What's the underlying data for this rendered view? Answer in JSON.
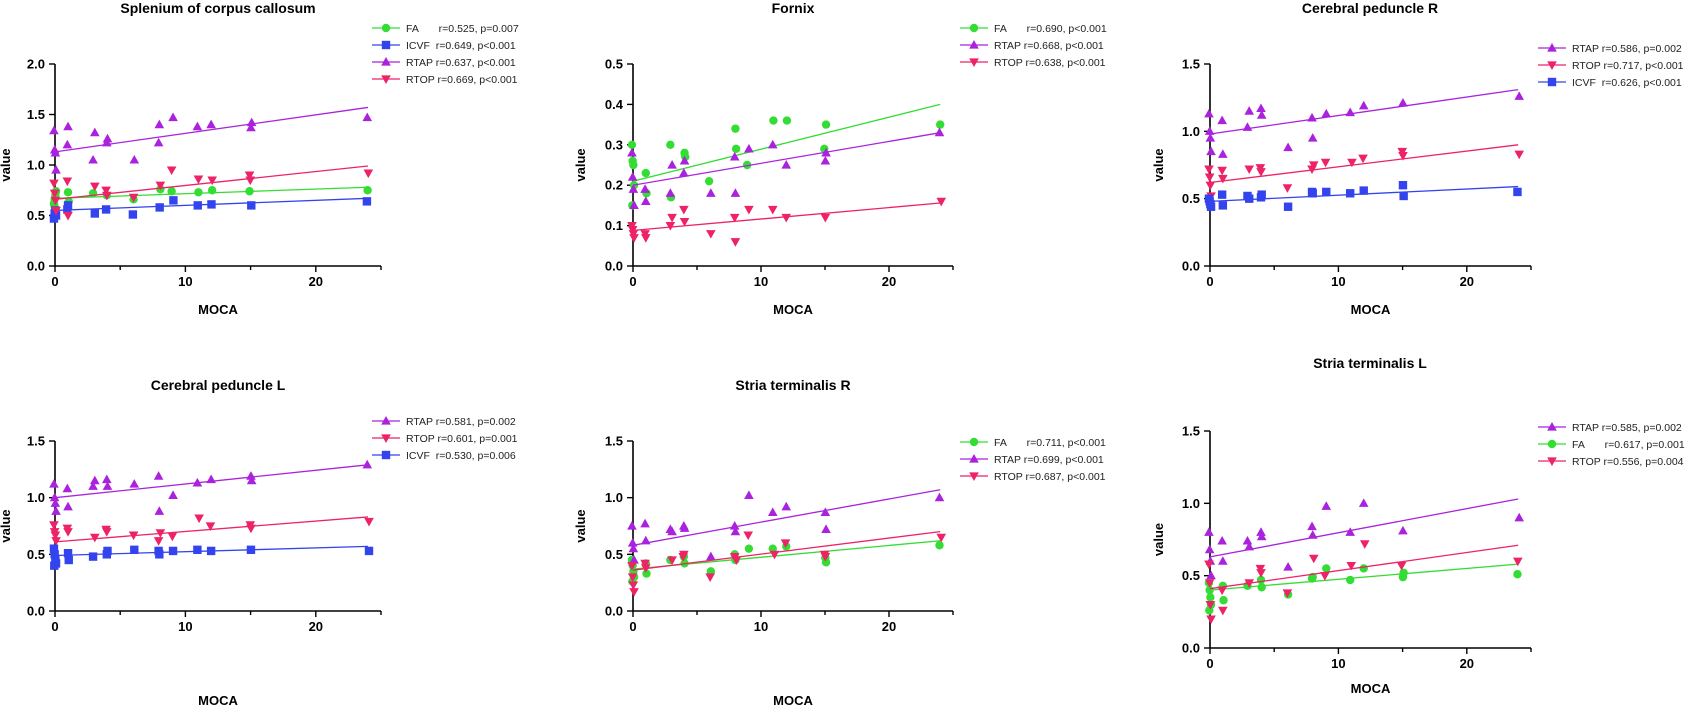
{
  "chart_data": [
    {
      "type": "scatter",
      "title": "Splenium of corpus callosum",
      "xlabel": "MOCA",
      "ylabel": "value",
      "xlim": [
        0,
        25
      ],
      "ylim": [
        0,
        2.0
      ],
      "xticks": [
        "0",
        "10",
        "20"
      ],
      "yticks": [
        "0.0",
        "0.5",
        "1.0",
        "1.5",
        "2.0"
      ],
      "legend_position": "top-right",
      "series": [
        {
          "name": "FA",
          "label": "FA       r=0.525, p=0.007",
          "color": "#33dd33",
          "marker": "circle",
          "x": [
            0,
            0,
            0,
            0,
            0,
            1,
            1,
            3,
            4,
            6,
            8,
            9,
            11,
            12,
            15,
            24
          ],
          "y": [
            0.62,
            0.66,
            0.7,
            0.74,
            0.6,
            0.73,
            0.64,
            0.72,
            0.7,
            0.66,
            0.76,
            0.74,
            0.73,
            0.75,
            0.74,
            0.75
          ],
          "fit": [
            0.67,
            0.78
          ]
        },
        {
          "name": "ICVF",
          "label": "ICVF  r=0.649, p<0.001",
          "color": "#3344ee",
          "marker": "square",
          "x": [
            0,
            0,
            0,
            0,
            1,
            1,
            3,
            4,
            6,
            8,
            9,
            11,
            12,
            15,
            24
          ],
          "y": [
            0.47,
            0.52,
            0.55,
            0.5,
            0.56,
            0.6,
            0.52,
            0.56,
            0.51,
            0.58,
            0.65,
            0.6,
            0.61,
            0.6,
            0.64
          ],
          "fit": [
            0.55,
            0.67
          ]
        },
        {
          "name": "RTAP",
          "label": "RTAP r=0.637, p<0.001",
          "color": "#aa22dd",
          "marker": "triangle-up",
          "x": [
            0,
            0,
            0,
            0,
            1,
            1,
            3,
            3,
            4,
            4,
            6,
            8,
            8,
            9,
            11,
            12,
            15,
            15,
            24
          ],
          "y": [
            1.34,
            1.15,
            1.12,
            0.95,
            1.2,
            1.38,
            1.32,
            1.05,
            1.22,
            1.26,
            1.05,
            1.22,
            1.4,
            1.47,
            1.38,
            1.4,
            1.37,
            1.42,
            1.47
          ],
          "fit": [
            1.13,
            1.57
          ]
        },
        {
          "name": "RTOP",
          "label": "RTOP r=0.669, p<0.001",
          "color": "#ee2266",
          "marker": "triangle-down",
          "x": [
            0,
            0,
            0,
            0,
            1,
            1,
            3,
            4,
            4,
            6,
            8,
            9,
            11,
            12,
            15,
            15,
            24
          ],
          "y": [
            0.82,
            0.72,
            0.65,
            0.55,
            0.84,
            0.5,
            0.79,
            0.75,
            0.7,
            0.68,
            0.8,
            0.95,
            0.86,
            0.85,
            0.9,
            0.85,
            0.92
          ],
          "fit": [
            0.66,
            0.99
          ]
        }
      ]
    },
    {
      "type": "scatter",
      "title": "Fornix",
      "xlabel": "MOCA",
      "ylabel": "value",
      "xlim": [
        0,
        25
      ],
      "ylim": [
        0,
        0.5
      ],
      "xticks": [
        "0",
        "10",
        "20"
      ],
      "yticks": [
        "0.0",
        "0.1",
        "0.2",
        "0.3",
        "0.4",
        "0.5"
      ],
      "legend_position": "top-right",
      "series": [
        {
          "name": "FA",
          "label": "FA       r=0.690, p<0.001",
          "color": "#33dd33",
          "marker": "circle",
          "x": [
            0,
            0,
            0,
            0,
            0,
            1,
            1,
            3,
            3,
            4,
            4,
            6,
            8,
            8,
            9,
            11,
            12,
            15,
            15,
            24
          ],
          "y": [
            0.3,
            0.26,
            0.25,
            0.2,
            0.15,
            0.23,
            0.18,
            0.3,
            0.17,
            0.28,
            0.27,
            0.21,
            0.34,
            0.29,
            0.25,
            0.36,
            0.36,
            0.35,
            0.29,
            0.35
          ],
          "fit": [
            0.21,
            0.4
          ]
        },
        {
          "name": "RTAP",
          "label": "RTAP r=0.668, p<0.001",
          "color": "#aa22dd",
          "marker": "triangle-up",
          "x": [
            0,
            0,
            0,
            0,
            1,
            1,
            3,
            3,
            4,
            4,
            6,
            8,
            8,
            9,
            11,
            12,
            15,
            15,
            24
          ],
          "y": [
            0.28,
            0.22,
            0.19,
            0.15,
            0.19,
            0.16,
            0.25,
            0.18,
            0.23,
            0.26,
            0.18,
            0.27,
            0.18,
            0.29,
            0.3,
            0.25,
            0.26,
            0.28,
            0.33
          ],
          "fit": [
            0.2,
            0.33
          ]
        },
        {
          "name": "RTOP",
          "label": "RTOP r=0.638, p<0.001",
          "color": "#ee2266",
          "marker": "triangle-down",
          "x": [
            0,
            0,
            0,
            0,
            1,
            1,
            3,
            3,
            4,
            4,
            6,
            8,
            8,
            9,
            11,
            12,
            15,
            24
          ],
          "y": [
            0.1,
            0.09,
            0.08,
            0.07,
            0.08,
            0.07,
            0.12,
            0.1,
            0.14,
            0.11,
            0.08,
            0.12,
            0.06,
            0.14,
            0.14,
            0.12,
            0.12,
            0.16
          ],
          "fit": [
            0.088,
            0.156
          ]
        }
      ]
    },
    {
      "type": "scatter",
      "title": "Cerebral peduncle R",
      "xlabel": "MOCA",
      "ylabel": "value",
      "xlim": [
        0,
        25
      ],
      "ylim": [
        0,
        1.5
      ],
      "xticks": [
        "0",
        "10",
        "20"
      ],
      "yticks": [
        "0.0",
        "0.5",
        "1.0",
        "1.5"
      ],
      "legend_position": "top-right",
      "series": [
        {
          "name": "RTAP",
          "label": "RTAP r=0.586, p=0.002",
          "color": "#aa22dd",
          "marker": "triangle-up",
          "x": [
            0,
            0,
            0,
            0,
            1,
            1,
            3,
            3,
            4,
            4,
            6,
            8,
            8,
            9,
            11,
            12,
            15,
            24
          ],
          "y": [
            1.13,
            1.0,
            0.95,
            0.85,
            1.08,
            0.83,
            1.15,
            1.03,
            1.17,
            1.12,
            0.88,
            1.1,
            0.95,
            1.13,
            1.14,
            1.19,
            1.21,
            1.26
          ],
          "fit": [
            0.98,
            1.31
          ]
        },
        {
          "name": "RTOP",
          "label": "RTOP r=0.717, p<0.001",
          "color": "#ee2266",
          "marker": "triangle-down",
          "x": [
            0,
            0,
            0,
            0,
            1,
            1,
            3,
            4,
            4,
            6,
            8,
            8,
            9,
            11,
            12,
            15,
            15,
            24
          ],
          "y": [
            0.72,
            0.66,
            0.6,
            0.52,
            0.71,
            0.65,
            0.72,
            0.73,
            0.7,
            0.58,
            0.75,
            0.72,
            0.77,
            0.77,
            0.8,
            0.85,
            0.82,
            0.83
          ],
          "fit": [
            0.62,
            0.9
          ]
        },
        {
          "name": "ICVF",
          "label": "ICVF  r=0.626, p<0.001",
          "color": "#3344ee",
          "marker": "square",
          "x": [
            0,
            0,
            0,
            0,
            1,
            1,
            3,
            3,
            4,
            4,
            6,
            8,
            8,
            9,
            11,
            12,
            15,
            15,
            24
          ],
          "y": [
            0.5,
            0.48,
            0.46,
            0.44,
            0.53,
            0.45,
            0.5,
            0.52,
            0.51,
            0.53,
            0.44,
            0.55,
            0.54,
            0.55,
            0.54,
            0.56,
            0.6,
            0.52,
            0.55
          ],
          "fit": [
            0.48,
            0.59
          ]
        }
      ]
    },
    {
      "type": "scatter",
      "title": "Cerebral peduncle L",
      "xlabel": "MOCA",
      "ylabel": "value",
      "xlim": [
        0,
        25
      ],
      "ylim": [
        0,
        1.5
      ],
      "xticks": [
        "0",
        "10",
        "20"
      ],
      "yticks": [
        "0.0",
        "0.5",
        "1.0",
        "1.5"
      ],
      "legend_position": "top-right",
      "series": [
        {
          "name": "RTAP",
          "label": "RTAP r=0.581, p=0.002",
          "color": "#aa22dd",
          "marker": "triangle-up",
          "x": [
            0,
            0,
            0,
            0,
            1,
            1,
            3,
            3,
            4,
            4,
            6,
            8,
            8,
            9,
            11,
            12,
            15,
            15,
            24
          ],
          "y": [
            1.12,
            1.0,
            0.95,
            0.88,
            1.08,
            0.92,
            1.15,
            1.1,
            1.16,
            1.1,
            1.12,
            1.19,
            0.88,
            1.02,
            1.13,
            1.16,
            1.19,
            1.15,
            1.29
          ],
          "fit": [
            1.0,
            1.29
          ]
        },
        {
          "name": "RTOP",
          "label": "RTOP r=0.601, p=0.001",
          "color": "#ee2266",
          "marker": "triangle-down",
          "x": [
            0,
            0,
            0,
            0,
            1,
            1,
            3,
            4,
            4,
            6,
            8,
            8,
            9,
            11,
            12,
            15,
            15,
            24
          ],
          "y": [
            0.76,
            0.7,
            0.67,
            0.62,
            0.73,
            0.7,
            0.65,
            0.72,
            0.7,
            0.67,
            0.69,
            0.62,
            0.66,
            0.82,
            0.75,
            0.76,
            0.73,
            0.79
          ],
          "fit": [
            0.61,
            0.83
          ]
        },
        {
          "name": "ICVF",
          "label": "ICVF  r=0.530, p=0.006",
          "color": "#3344ee",
          "marker": "square",
          "x": [
            0,
            0,
            0,
            0,
            0,
            1,
            1,
            3,
            4,
            4,
            6,
            8,
            8,
            9,
            11,
            12,
            15,
            24
          ],
          "y": [
            0.55,
            0.5,
            0.46,
            0.42,
            0.4,
            0.51,
            0.45,
            0.48,
            0.5,
            0.53,
            0.54,
            0.53,
            0.5,
            0.53,
            0.54,
            0.53,
            0.54,
            0.53
          ],
          "fit": [
            0.49,
            0.57
          ]
        }
      ]
    },
    {
      "type": "scatter",
      "title": "Stria terminalis R",
      "xlabel": "MOCA",
      "ylabel": "value",
      "xlim": [
        0,
        25
      ],
      "ylim": [
        0,
        1.5
      ],
      "xticks": [
        "0",
        "10",
        "20"
      ],
      "yticks": [
        "0.0",
        "0.5",
        "1.0",
        "1.5"
      ],
      "legend_position": "top-right",
      "series": [
        {
          "name": "FA",
          "label": "FA       r=0.711, p<0.001",
          "color": "#33dd33",
          "marker": "circle",
          "x": [
            0,
            0,
            0,
            0,
            0,
            1,
            1,
            3,
            4,
            4,
            6,
            8,
            8,
            9,
            11,
            12,
            15,
            15,
            24
          ],
          "y": [
            0.45,
            0.4,
            0.35,
            0.3,
            0.26,
            0.42,
            0.33,
            0.45,
            0.48,
            0.42,
            0.35,
            0.5,
            0.45,
            0.55,
            0.55,
            0.57,
            0.47,
            0.43,
            0.58
          ],
          "fit": [
            0.37,
            0.62
          ]
        },
        {
          "name": "RTAP",
          "label": "RTAP r=0.699, p<0.001",
          "color": "#aa22dd",
          "marker": "triangle-up",
          "x": [
            0,
            0,
            0,
            0,
            1,
            1,
            3,
            3,
            4,
            4,
            6,
            8,
            8,
            9,
            11,
            12,
            15,
            15,
            24
          ],
          "y": [
            0.75,
            0.6,
            0.55,
            0.45,
            0.77,
            0.62,
            0.7,
            0.72,
            0.75,
            0.73,
            0.48,
            0.75,
            0.7,
            1.02,
            0.87,
            0.92,
            0.87,
            0.72,
            1.0
          ],
          "fit": [
            0.58,
            1.07
          ]
        },
        {
          "name": "RTOP",
          "label": "RTOP r=0.687, p<0.001",
          "color": "#ee2266",
          "marker": "triangle-down",
          "x": [
            0,
            0,
            0,
            0,
            1,
            1,
            3,
            4,
            4,
            6,
            8,
            8,
            9,
            11,
            12,
            15,
            15,
            24
          ],
          "y": [
            0.4,
            0.3,
            0.23,
            0.17,
            0.42,
            0.38,
            0.45,
            0.48,
            0.5,
            0.3,
            0.45,
            0.48,
            0.67,
            0.5,
            0.6,
            0.5,
            0.48,
            0.65
          ],
          "fit": [
            0.36,
            0.7
          ]
        }
      ]
    },
    {
      "type": "scatter",
      "title": "Stria terminalis L",
      "xlabel": "MOCA",
      "ylabel": "value",
      "xlim": [
        0,
        25
      ],
      "ylim": [
        0,
        1.5
      ],
      "xticks": [
        "0",
        "10",
        "20"
      ],
      "yticks": [
        "0.0",
        "0.5",
        "1.0",
        "1.5"
      ],
      "legend_position": "top-right",
      "series": [
        {
          "name": "RTAP",
          "label": "RTAP r=0.585, p=0.002",
          "color": "#aa22dd",
          "marker": "triangle-up",
          "x": [
            0,
            0,
            0,
            0,
            1,
            1,
            3,
            3,
            4,
            4,
            6,
            8,
            8,
            9,
            11,
            12,
            15,
            24
          ],
          "y": [
            0.8,
            0.68,
            0.6,
            0.5,
            0.74,
            0.6,
            0.7,
            0.74,
            0.8,
            0.77,
            0.56,
            0.84,
            0.78,
            0.98,
            0.8,
            1.0,
            0.81,
            0.9
          ],
          "fit": [
            0.63,
            1.03
          ]
        },
        {
          "name": "FA",
          "label": "FA       r=0.617, p=0.001",
          "color": "#33dd33",
          "marker": "circle",
          "x": [
            0,
            0,
            0,
            0,
            0,
            1,
            1,
            3,
            4,
            4,
            6,
            8,
            8,
            9,
            11,
            12,
            15,
            15,
            24
          ],
          "y": [
            0.45,
            0.4,
            0.35,
            0.3,
            0.26,
            0.43,
            0.33,
            0.43,
            0.47,
            0.42,
            0.37,
            0.48,
            0.49,
            0.55,
            0.47,
            0.55,
            0.49,
            0.52,
            0.51
          ],
          "fit": [
            0.4,
            0.58
          ]
        },
        {
          "name": "RTOP",
          "label": "RTOP r=0.556, p=0.004",
          "color": "#ee2266",
          "marker": "triangle-down",
          "x": [
            0,
            0,
            0,
            0,
            1,
            1,
            3,
            4,
            4,
            6,
            8,
            9,
            11,
            12,
            15,
            24
          ],
          "y": [
            0.58,
            0.45,
            0.3,
            0.2,
            0.4,
            0.26,
            0.45,
            0.55,
            0.52,
            0.38,
            0.62,
            0.5,
            0.57,
            0.72,
            0.57,
            0.6
          ],
          "fit": [
            0.41,
            0.71
          ]
        }
      ]
    }
  ]
}
